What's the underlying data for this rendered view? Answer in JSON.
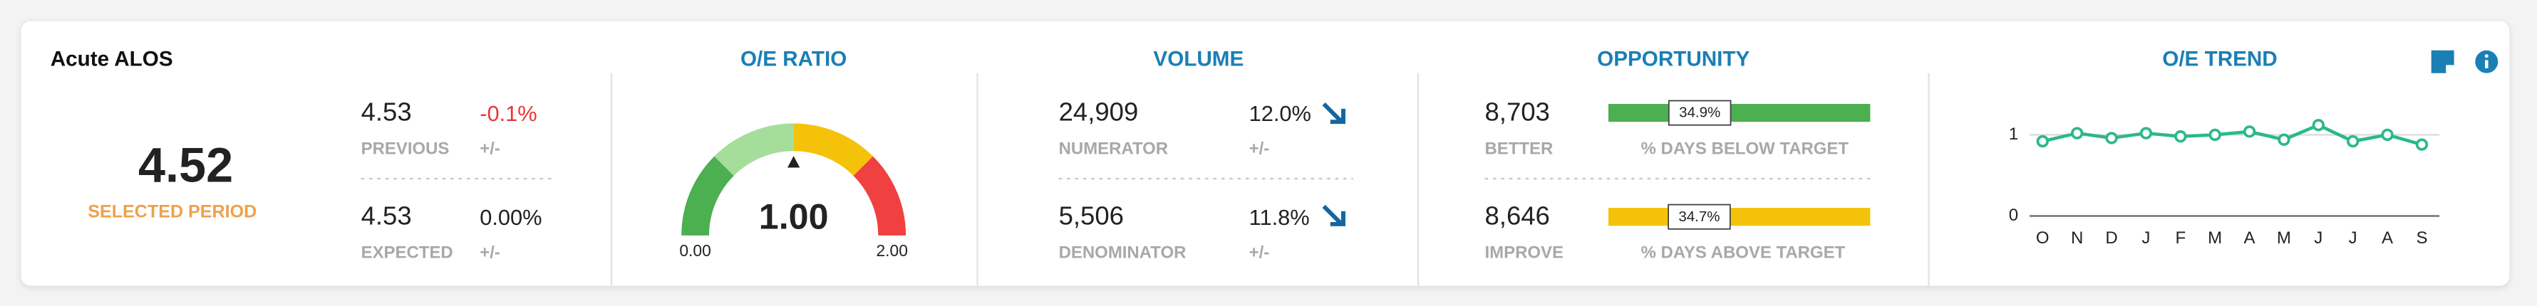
{
  "header": {
    "title": "Acute ALOS"
  },
  "alos": {
    "value": "4.52",
    "label": "SELECTED PERIOD",
    "previous": {
      "value": "4.53",
      "label": "PREVIOUS",
      "change": "-0.1%",
      "change_label": "+/-"
    },
    "expected": {
      "value": "4.53",
      "label": "EXPECTED",
      "change": "0.00%",
      "change_label": "+/-"
    }
  },
  "oe_ratio": {
    "title": "O/E RATIO",
    "value": {
      "value": 1,
      "label": "1.00"
    },
    "scale": [
      {
        "value": 0,
        "label": "0.00"
      },
      {
        "value": 2,
        "label": "2.00"
      }
    ]
  },
  "volume": {
    "title": "VOLUME",
    "rows": [
      {
        "value": "24,909",
        "label": "NUMERATOR",
        "change": "12.0%",
        "change_label": "+/-"
      },
      {
        "value": "5,506",
        "label": "DENOMINATOR",
        "change": "11.8%",
        "change_label": "+/-"
      }
    ]
  },
  "opportunity": {
    "title": "OPPORTUNITY",
    "rows": [
      {
        "value": "8,703",
        "label": "BETTER",
        "percent": {
          "value": 34.9,
          "label": "34.9%"
        },
        "percent_label": "% DAYS BELOW TARGET",
        "color": "#4caf50"
      },
      {
        "value": "8,646",
        "label": "IMPROVE",
        "percent": {
          "value": 34.7,
          "label": "34.7%"
        },
        "percent_label": "% DAYS ABOVE TARGET",
        "color": "#f5c20a"
      }
    ]
  },
  "chart_data": {
    "type": "line",
    "title": "O/E TREND",
    "categories": [
      "O",
      "N",
      "D",
      "J",
      "F",
      "M",
      "A",
      "M",
      "J",
      "J",
      "A",
      "S"
    ],
    "series": [
      {
        "color": "#2bb98a",
        "values": [
          0.92,
          1.02,
          0.96,
          1.02,
          0.98,
          1.0,
          1.04,
          0.94,
          1.12,
          0.92,
          1.0,
          0.88
        ]
      }
    ],
    "ylim": [
      0,
      1.2
    ],
    "yticks": [
      0,
      1
    ],
    "grid": true
  }
}
